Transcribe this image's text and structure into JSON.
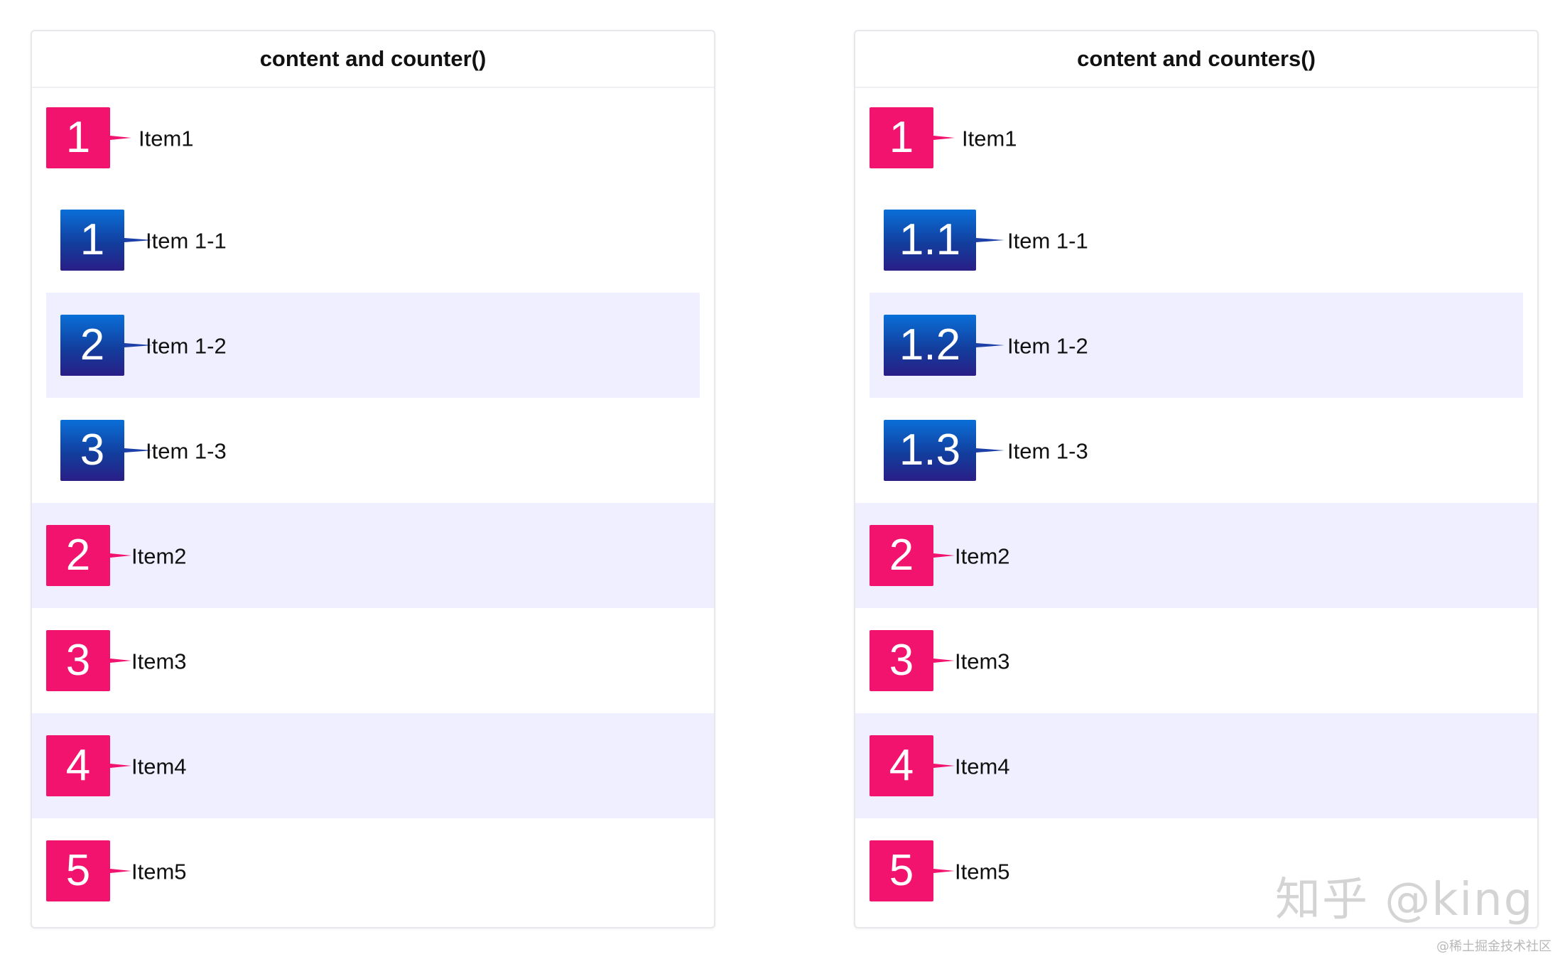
{
  "left": {
    "title": "content and counter()",
    "items": [
      {
        "marker": "1",
        "label": "Item1"
      },
      {
        "marker": "1",
        "label": "Item 1-1"
      },
      {
        "marker": "2",
        "label": "Item 1-2"
      },
      {
        "marker": "3",
        "label": "Item 1-3"
      },
      {
        "marker": "2",
        "label": "Item2"
      },
      {
        "marker": "3",
        "label": "Item3"
      },
      {
        "marker": "4",
        "label": "Item4"
      },
      {
        "marker": "5",
        "label": "Item5"
      }
    ]
  },
  "right": {
    "title": "content and counters()",
    "items": [
      {
        "marker": "1",
        "label": "Item1"
      },
      {
        "marker": "1.1",
        "label": "Item 1-1"
      },
      {
        "marker": "1.2",
        "label": "Item 1-2"
      },
      {
        "marker": "1.3",
        "label": "Item 1-3"
      },
      {
        "marker": "2",
        "label": "Item2"
      },
      {
        "marker": "3",
        "label": "Item3"
      },
      {
        "marker": "4",
        "label": "Item4"
      },
      {
        "marker": "5",
        "label": "Item5"
      }
    ]
  },
  "watermark": "知乎 @king",
  "sub_watermark": "@稀土掘金技术社区",
  "colors": {
    "pink": "#f2136f",
    "blue_top": "#0a6fd8",
    "blue_bottom": "#291e86",
    "row_alt": "#efefff"
  }
}
